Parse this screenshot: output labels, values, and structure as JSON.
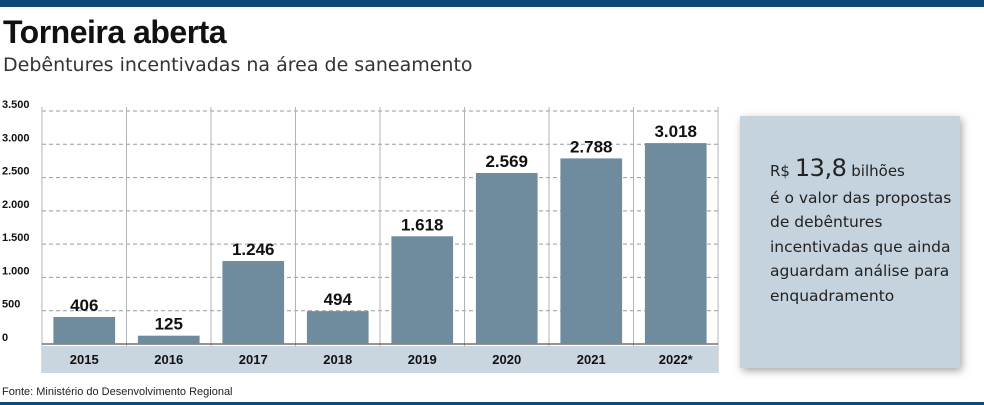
{
  "header": {
    "title": "Torneira aberta",
    "subtitle": "Debêntures incentivadas na área de saneamento"
  },
  "chart_data": {
    "type": "bar",
    "categories": [
      "2015",
      "2016",
      "2017",
      "2018",
      "2019",
      "2020",
      "2021",
      "2022*"
    ],
    "values": [
      406,
      125,
      1246,
      494,
      1618,
      2569,
      2788,
      3018
    ],
    "value_labels": [
      "406",
      "125",
      "1.246",
      "494",
      "1.618",
      "2.569",
      "2.788",
      "3.018"
    ],
    "y_ticks": [
      0,
      500,
      1000,
      1500,
      2000,
      2500,
      3000,
      3500
    ],
    "y_tick_labels": [
      "0",
      "500",
      "1.000",
      "1.500",
      "2.000",
      "2.500",
      "3.000",
      "3.500"
    ],
    "ylim": [
      0,
      3500
    ],
    "grid": true,
    "bar_color": "#6f8c9f"
  },
  "callout": {
    "currency": "R$",
    "value": "13,8",
    "unit": "bilhões",
    "text": "é o valor das propostas de debêntures incentivadas que ainda aguardam análise para enquadramento",
    "background": "#c4d3dd"
  },
  "source": "Fonte: Ministério do Desenvolvimento Regional",
  "colors": {
    "accent": "#0d4a78",
    "axis_band": "#c9d6df"
  }
}
